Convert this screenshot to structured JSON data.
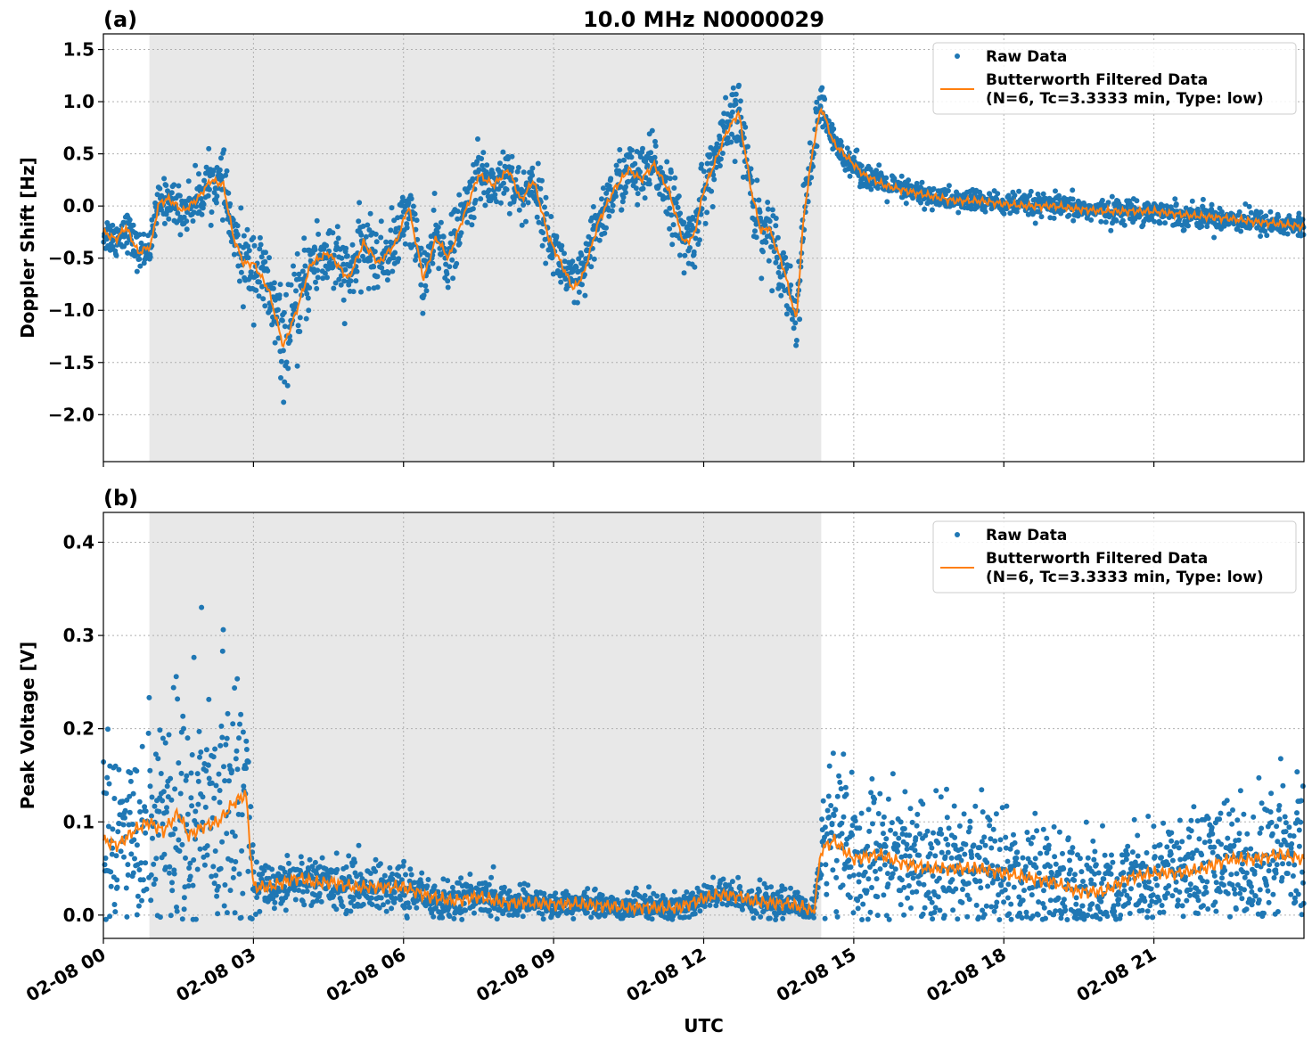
{
  "figure": {
    "title": "10.0 MHz N0000029",
    "xlabel": "UTC"
  },
  "chart_data": [
    {
      "type": "scatter",
      "panel_label": "(a)",
      "ylabel": "Doppler Shift [Hz]",
      "xlim": [
        0,
        24
      ],
      "ylim": [
        -2.45,
        1.65
      ],
      "yticks": [
        -2.0,
        -1.5,
        -1.0,
        -0.5,
        0.0,
        0.5,
        1.0,
        1.5
      ],
      "ytick_labels": [
        "−2.0",
        "−1.5",
        "−1.0",
        "−0.5",
        "0.0",
        "0.5",
        "1.0",
        "1.5"
      ],
      "xticks": [
        0,
        3,
        6,
        9,
        12,
        15,
        18,
        21
      ],
      "shaded_span": [
        0.92,
        14.35
      ],
      "grid": true,
      "legend": {
        "placement": "top-right",
        "entries": [
          {
            "label": "Raw Data",
            "kind": "marker",
            "color": "#1f77b4"
          },
          {
            "label": "Butterworth Filtered Data",
            "label2": "(N=6, Tc=3.3333 min, Type: low)",
            "kind": "line",
            "color": "#ff7f0e"
          }
        ]
      },
      "series": [
        {
          "name": "Butterworth Filtered Data",
          "kind": "line",
          "color": "#ff7f0e",
          "x": [
            0.0,
            0.25,
            0.45,
            0.7,
            0.95,
            1.1,
            1.3,
            1.6,
            1.9,
            2.15,
            2.4,
            2.6,
            2.8,
            3.0,
            3.3,
            3.6,
            3.75,
            3.9,
            4.15,
            4.5,
            4.9,
            5.2,
            5.5,
            5.85,
            6.1,
            6.4,
            6.65,
            6.9,
            7.2,
            7.5,
            7.8,
            8.1,
            8.35,
            8.6,
            8.9,
            9.1,
            9.4,
            9.6,
            9.9,
            10.2,
            10.5,
            10.75,
            11.0,
            11.3,
            11.6,
            11.8,
            12.0,
            12.25,
            12.45,
            12.7,
            12.95,
            13.15,
            13.3,
            13.6,
            13.85,
            14.0,
            14.2,
            14.35,
            14.6,
            14.9,
            15.2,
            15.6,
            16.0,
            16.5,
            17.0,
            17.5,
            18.0,
            18.5,
            19.0,
            19.5,
            20.0,
            20.5,
            21.0,
            21.5,
            22.0,
            22.5,
            23.0,
            23.5,
            24.0
          ],
          "y": [
            -0.25,
            -0.32,
            -0.2,
            -0.45,
            -0.38,
            0.02,
            0.07,
            -0.05,
            0.08,
            0.25,
            0.2,
            -0.3,
            -0.55,
            -0.55,
            -0.8,
            -1.35,
            -1.15,
            -0.95,
            -0.55,
            -0.45,
            -0.7,
            -0.35,
            -0.55,
            -0.35,
            0.0,
            -0.7,
            -0.3,
            -0.5,
            -0.1,
            0.3,
            0.2,
            0.35,
            0.05,
            0.25,
            -0.3,
            -0.5,
            -0.8,
            -0.65,
            -0.15,
            0.15,
            0.35,
            0.25,
            0.4,
            0.15,
            -0.35,
            -0.3,
            0.15,
            0.45,
            0.7,
            0.9,
            0.15,
            -0.25,
            -0.2,
            -0.6,
            -1.1,
            -0.1,
            0.6,
            0.95,
            0.6,
            0.45,
            0.3,
            0.2,
            0.15,
            0.1,
            0.05,
            0.05,
            0.02,
            0.0,
            0.0,
            -0.03,
            -0.05,
            -0.05,
            -0.05,
            -0.08,
            -0.1,
            -0.12,
            -0.15,
            -0.17,
            -0.2
          ]
        },
        {
          "name": "Raw Data",
          "kind": "scatter",
          "color": "#1f77b4",
          "spread": [
            [
              0.0,
              0.2
            ],
            [
              0.9,
              0.2
            ],
            [
              2.5,
              0.3
            ],
            [
              3.0,
              0.45
            ],
            [
              3.7,
              0.5
            ],
            [
              5.0,
              0.35
            ],
            [
              9.0,
              0.3
            ],
            [
              12.0,
              0.35
            ],
            [
              13.5,
              0.35
            ],
            [
              14.35,
              0.3
            ],
            [
              14.5,
              0.15
            ],
            [
              17.0,
              0.12
            ],
            [
              24.0,
              0.13
            ]
          ]
        }
      ]
    },
    {
      "type": "scatter",
      "panel_label": "(b)",
      "ylabel": "Peak Voltage [V]",
      "xlim": [
        0,
        24
      ],
      "ylim": [
        -0.025,
        0.432
      ],
      "yticks": [
        0.0,
        0.1,
        0.2,
        0.3,
        0.4
      ],
      "ytick_labels": [
        "0.0",
        "0.1",
        "0.2",
        "0.3",
        "0.4"
      ],
      "xticks": [
        0,
        3,
        6,
        9,
        12,
        15,
        18,
        21
      ],
      "xtick_labels": [
        "02-08 00",
        "02-08 03",
        "02-08 06",
        "02-08 09",
        "02-08 12",
        "02-08 15",
        "02-08 18",
        "02-08 21"
      ],
      "shaded_span": [
        0.92,
        14.35
      ],
      "grid": true,
      "legend": {
        "placement": "top-right",
        "entries": [
          {
            "label": "Raw Data",
            "kind": "marker",
            "color": "#1f77b4"
          },
          {
            "label": "Butterworth Filtered Data",
            "label2": "(N=6, Tc=3.3333 min, Type: low)",
            "kind": "line",
            "color": "#ff7f0e"
          }
        ]
      },
      "series": [
        {
          "name": "Butterworth Filtered Data",
          "kind": "line",
          "color": "#ff7f0e",
          "x": [
            0.0,
            0.3,
            0.6,
            0.9,
            1.2,
            1.5,
            1.7,
            2.0,
            2.3,
            2.6,
            2.85,
            3.0,
            3.3,
            3.6,
            3.9,
            4.2,
            4.6,
            5.0,
            5.5,
            6.0,
            6.5,
            7.0,
            7.5,
            8.0,
            8.5,
            9.0,
            9.5,
            10.0,
            10.5,
            11.0,
            11.5,
            12.0,
            12.3,
            12.7,
            13.0,
            13.3,
            13.7,
            14.0,
            14.2,
            14.35,
            14.6,
            15.0,
            15.5,
            16.0,
            16.5,
            17.0,
            17.5,
            18.0,
            18.5,
            19.0,
            19.5,
            20.0,
            20.5,
            21.0,
            21.5,
            22.0,
            22.5,
            23.0,
            23.5,
            24.0
          ],
          "y": [
            0.08,
            0.075,
            0.09,
            0.1,
            0.09,
            0.11,
            0.085,
            0.095,
            0.1,
            0.12,
            0.13,
            0.03,
            0.03,
            0.035,
            0.04,
            0.035,
            0.035,
            0.03,
            0.03,
            0.03,
            0.02,
            0.015,
            0.02,
            0.013,
            0.013,
            0.012,
            0.012,
            0.01,
            0.008,
            0.008,
            0.008,
            0.018,
            0.022,
            0.02,
            0.015,
            0.013,
            0.012,
            0.008,
            0.003,
            0.07,
            0.08,
            0.06,
            0.065,
            0.055,
            0.05,
            0.05,
            0.05,
            0.045,
            0.04,
            0.035,
            0.025,
            0.025,
            0.04,
            0.045,
            0.045,
            0.05,
            0.06,
            0.06,
            0.065,
            0.06
          ]
        },
        {
          "name": "Raw Data",
          "kind": "scatter",
          "color": "#1f77b4",
          "spread": [
            [
              0.0,
              0.1
            ],
            [
              2.9,
              0.17
            ],
            [
              3.0,
              0.03
            ],
            [
              6.0,
              0.03
            ],
            [
              9.0,
              0.015
            ],
            [
              12.0,
              0.02
            ],
            [
              14.3,
              0.015
            ],
            [
              14.4,
              0.09
            ],
            [
              18.0,
              0.07
            ],
            [
              21.0,
              0.06
            ],
            [
              24.0,
              0.09
            ]
          ]
        }
      ]
    }
  ]
}
